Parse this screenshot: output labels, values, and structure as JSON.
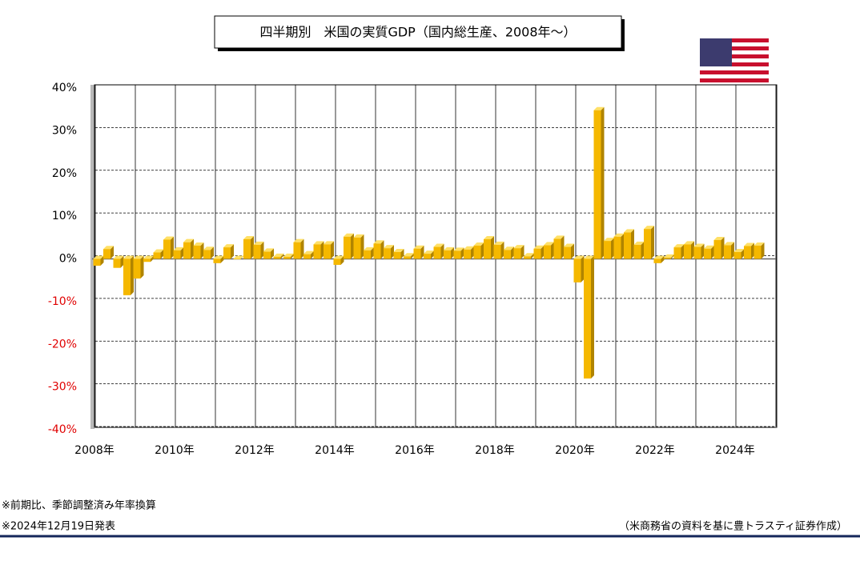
{
  "chart_data": {
    "type": "bar3d",
    "title": "四半期別　米国の実質GDP（国内総生産、2008年～）",
    "categories": [
      "2008年",
      null,
      null,
      null,
      null,
      null,
      null,
      null,
      "2010年",
      null,
      null,
      null,
      null,
      null,
      null,
      null,
      "2012年",
      null,
      null,
      null,
      null,
      null,
      null,
      null,
      "2014年",
      null,
      null,
      null,
      null,
      null,
      null,
      null,
      "2016年",
      null,
      null,
      null,
      null,
      null,
      null,
      null,
      "2018年",
      null,
      null,
      null,
      null,
      null,
      null,
      null,
      "2020年",
      null,
      null,
      null,
      null,
      null,
      null,
      null,
      "2022年",
      null,
      null,
      null,
      null,
      null,
      null,
      null,
      "2024年",
      null,
      null
    ],
    "values": [
      -1.6,
      2.3,
      -2.1,
      -8.5,
      -4.6,
      -0.7,
      1.5,
      4.5,
      2.0,
      3.9,
      3.1,
      2.1,
      -1.0,
      2.7,
      -0.1,
      4.6,
      3.3,
      1.7,
      0.5,
      0.5,
      3.9,
      1.1,
      3.4,
      3.4,
      -1.4,
      5.2,
      5.0,
      2.0,
      3.6,
      2.5,
      1.6,
      0.6,
      2.4,
      1.2,
      2.8,
      2.0,
      1.9,
      2.2,
      3.1,
      4.6,
      3.3,
      2.1,
      2.5,
      0.6,
      2.4,
      3.2,
      4.7,
      2.8,
      -5.5,
      -28.0,
      34.8,
      4.2,
      5.2,
      6.2,
      3.3,
      7.0,
      -1.0,
      0.3,
      2.7,
      3.4,
      2.8,
      2.4,
      4.4,
      3.2,
      1.6,
      3.0,
      3.1
    ],
    "color": "#f5b800",
    "ylim": [
      -40,
      40
    ],
    "yticks": [
      {
        "value": -40,
        "label": "-40%"
      },
      {
        "value": -30,
        "label": "-30%"
      },
      {
        "value": -20,
        "label": "-20%"
      },
      {
        "value": -10,
        "label": "-10%"
      },
      {
        "value": 0,
        "label": "0%"
      },
      {
        "value": 10,
        "label": "10%"
      },
      {
        "value": 20,
        "label": "20%"
      },
      {
        "value": 30,
        "label": "30%"
      },
      {
        "value": 40,
        "label": "40%"
      }
    ],
    "negative_label_color": "#e00000",
    "grid": true,
    "notes": [
      "※前期比、季節調整済み年率換算",
      "※2024年12月19日発表"
    ],
    "source": "（米商務省の資料を基に豊トラスティ証券作成）"
  }
}
